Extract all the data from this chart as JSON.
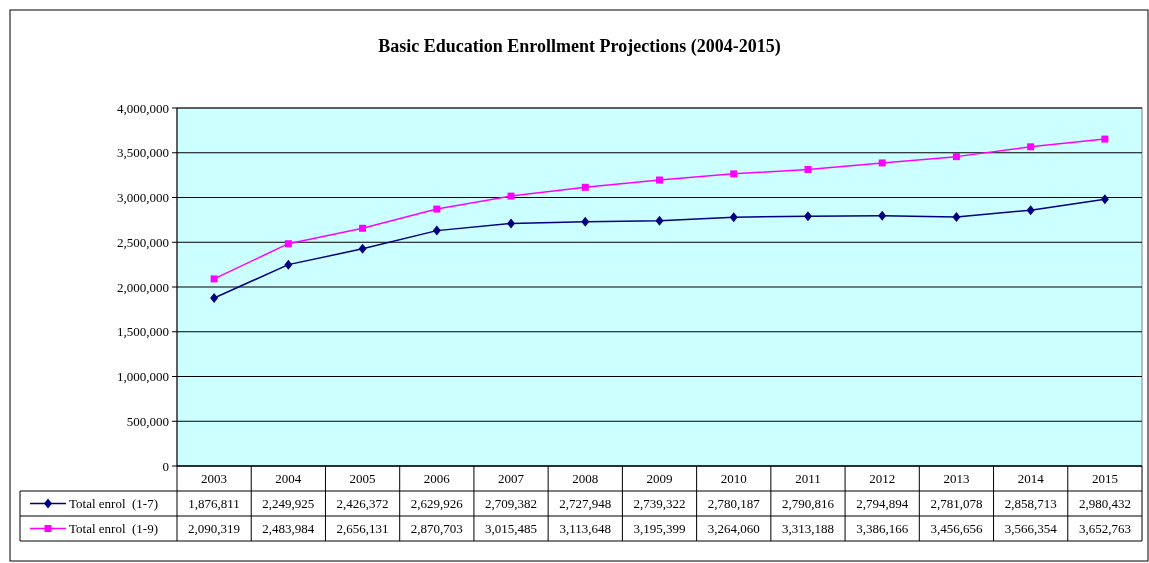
{
  "chart_data": {
    "type": "line",
    "title": "Basic Education Enrollment Projections (2004-2015)",
    "categories": [
      "2003",
      "2004",
      "2005",
      "2006",
      "2007",
      "2008",
      "2009",
      "2010",
      "2011",
      "2012",
      "2013",
      "2014",
      "2015"
    ],
    "series": [
      {
        "name": "Total enrol  (1-7)",
        "color": "#000080",
        "marker": "diamond",
        "values": [
          1876811,
          2249925,
          2426372,
          2629926,
          2709382,
          2727948,
          2739322,
          2780187,
          2790816,
          2794894,
          2781078,
          2858713,
          2980432
        ],
        "value_labels": [
          "1,876,811",
          "2,249,925",
          "2,426,372",
          "2,629,926",
          "2,709,382",
          "2,727,948",
          "2,739,322",
          "2,780,187",
          "2,790,816",
          "2,794,894",
          "2,781,078",
          "2,858,713",
          "2,980,432"
        ]
      },
      {
        "name": "Total enrol  (1-9)",
        "color": "#ff00ff",
        "marker": "square",
        "values": [
          2090319,
          2483984,
          2656131,
          2870703,
          3015485,
          3113648,
          3195399,
          3264060,
          3313188,
          3386166,
          3456656,
          3566354,
          3652763
        ],
        "value_labels": [
          "2,090,319",
          "2,483,984",
          "2,656,131",
          "2,870,703",
          "3,015,485",
          "3,113,648",
          "3,195,399",
          "3,264,060",
          "3,313,188",
          "3,386,166",
          "3,456,656",
          "3,566,354",
          "3,652,763"
        ]
      }
    ],
    "ylim": [
      0,
      4000000
    ],
    "yticks": [
      0,
      {
        "value": 500000,
        "label": "500,000"
      },
      {
        "value": 1000000,
        "label": "1,000,000"
      },
      {
        "value": 1500000,
        "label": "1,500,000"
      },
      {
        "value": 2000000,
        "label": "2,000,000"
      },
      {
        "value": 2500000,
        "label": "2,500,000"
      },
      {
        "value": 3000000,
        "label": "3,000,000"
      },
      {
        "value": 3500000,
        "label": "3,500,000"
      },
      {
        "value": 4000000,
        "label": "4,000,000"
      }
    ],
    "grid": "y",
    "legend": "bottom",
    "line_style": "solid"
  }
}
